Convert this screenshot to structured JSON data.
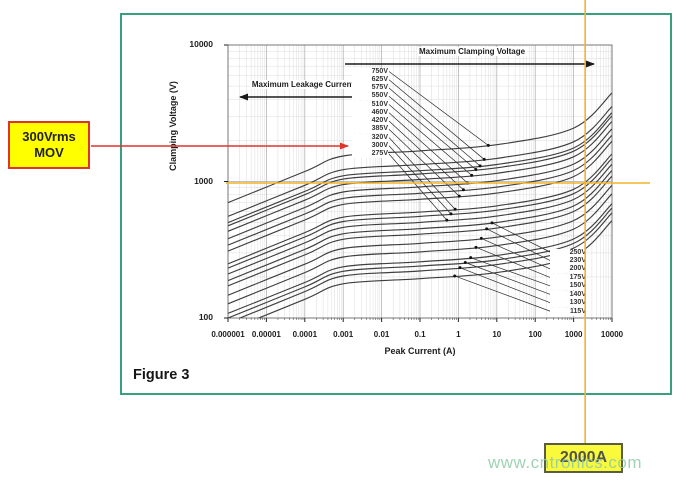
{
  "figure": {
    "caption": "Figure 3"
  },
  "annotations": {
    "mov_box": {
      "line1": "300Vrms",
      "line2": "MOV"
    },
    "current_box": {
      "label": "2000A"
    },
    "watermark": "www.cntronics.com"
  },
  "colors": {
    "green_border": "#38a07c",
    "accent_orange": "#f2b32b",
    "arrow_red": "#e0342a",
    "highlight_yellow": "#ffff00",
    "highlight_yellow2": "#fafa3c",
    "watermark_green": "#8fcbaa",
    "curve_ink": "#3f3f3f"
  },
  "chart_data": {
    "type": "line",
    "title": "",
    "xlabel": "Peak Current (A)",
    "ylabel": "Clamping Voltage (V)",
    "x_scale": "log",
    "y_scale": "log",
    "xlim": [
      1e-06,
      10000
    ],
    "ylim": [
      100,
      10000
    ],
    "grid": true,
    "x_ticks": [
      "0.000001",
      "0.00001",
      "0.0001",
      "0.001",
      "0.01",
      "0.1",
      "1",
      "10",
      "100",
      "1000",
      "10000"
    ],
    "y_ticks": [
      "100",
      "1000",
      "10000"
    ],
    "arrow_labels": {
      "clamping": "Maximum Clamping Voltage",
      "leakage": "Maximum Leakage Current"
    },
    "reference_point": {
      "current_a": 2000,
      "clamping_v": 1000,
      "device": "300Vrms MOV"
    },
    "sample_currents_a": [
      1e-06,
      0.0001,
      0.001,
      0.1,
      10,
      1000,
      10000
    ],
    "series": [
      {
        "label": "750V",
        "group": "upper",
        "pointer_current_a": 6.0,
        "clamping_v": [
          700,
          1183,
          1538,
          1676,
          1861,
          2461,
          4460
        ]
      },
      {
        "label": "625V",
        "group": "upper",
        "pointer_current_a": 4.7,
        "clamping_v": [
          555,
          938,
          1220,
          1330,
          1476,
          1952,
          3538
        ]
      },
      {
        "label": "575V",
        "group": "upper",
        "pointer_current_a": 3.65,
        "clamping_v": [
          500,
          846,
          1100,
          1199,
          1331,
          1760,
          3190
        ]
      },
      {
        "label": "550V",
        "group": "upper",
        "pointer_current_a": 2.85,
        "clamping_v": [
          474,
          801,
          1041,
          1135,
          1260,
          1666,
          3019
        ]
      },
      {
        "label": "510V",
        "group": "upper",
        "pointer_current_a": 2.22,
        "clamping_v": [
          432,
          730,
          949,
          1034,
          1148,
          1518,
          2752
        ]
      },
      {
        "label": "460V",
        "group": "upper",
        "pointer_current_a": 1.73,
        "clamping_v": [
          381,
          645,
          838,
          913,
          1014,
          1341,
          2430
        ]
      },
      {
        "label": "420V",
        "group": "upper",
        "pointer_current_a": 1.35,
        "clamping_v": [
          342,
          578,
          752,
          820,
          910,
          1203,
          2181
        ]
      },
      {
        "label": "385V",
        "group": "upper",
        "pointer_current_a": 1.05,
        "clamping_v": [
          309,
          522,
          679,
          740,
          822,
          1086,
          1969
        ]
      },
      {
        "label": "320V",
        "group": "upper",
        "pointer_current_a": 0.82,
        "clamping_v": [
          249,
          422,
          548,
          597,
          663,
          877,
          1589
        ]
      },
      {
        "label": "300V",
        "group": "upper",
        "pointer_current_a": 0.64,
        "clamping_v": [
          232,
          392,
          509,
          555,
          616,
          814,
          1476
        ]
      },
      {
        "label": "275V",
        "group": "upper",
        "pointer_current_a": 0.5,
        "clamping_v": [
          210,
          355,
          461,
          502,
          558,
          738,
          1337
        ]
      },
      {
        "label": "250V",
        "group": "lower",
        "pointer_current_a": 7.5,
        "clamping_v": [
          188,
          318,
          414,
          451,
          501,
          662,
          1201
        ]
      },
      {
        "label": "230V",
        "group": "lower",
        "pointer_current_a": 5.45,
        "clamping_v": [
          172,
          290,
          377,
          411,
          456,
          603,
          1093
        ]
      },
      {
        "label": "200V",
        "group": "lower",
        "pointer_current_a": 3.96,
        "clamping_v": [
          147,
          248,
          323,
          352,
          391,
          517,
          937
        ]
      },
      {
        "label": "175V",
        "group": "lower",
        "pointer_current_a": 2.87,
        "clamping_v": [
          127,
          215,
          280,
          305,
          339,
          448,
          812
        ]
      },
      {
        "label": "150V",
        "group": "lower",
        "pointer_current_a": 2.09,
        "clamping_v": [
          108,
          182,
          237,
          258,
          287,
          379,
          687
        ]
      },
      {
        "label": "140V",
        "group": "lower",
        "pointer_current_a": 1.51,
        "clamping_v": [
          100,
          169,
          220,
          240,
          266,
          352,
          638
        ]
      },
      {
        "label": "130V",
        "group": "lower",
        "pointer_current_a": 1.1,
        "clamping_v": [
          92,
          156,
          203,
          221,
          246,
          325,
          589
        ]
      },
      {
        "label": "115V",
        "group": "lower",
        "pointer_current_a": 0.8,
        "clamping_v": [
          81,
          137,
          178,
          194,
          215,
          285,
          516
        ]
      }
    ]
  }
}
